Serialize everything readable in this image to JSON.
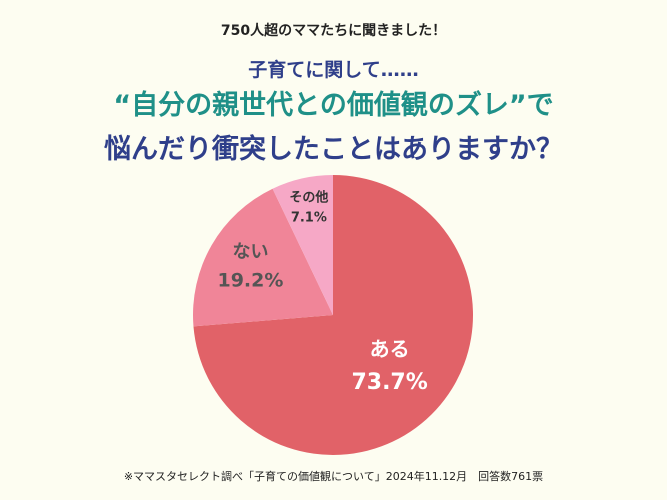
{
  "header": {
    "subtitle": "750人超のママたちに聞きました！",
    "line1": "子育てに関して……",
    "line2": "“自分の親世代との価値観のズレ”で",
    "line3": "悩んだり衝突したことはありますか？"
  },
  "footnote": "※ママスタセレクト調べ「子育ての価値観について」2024年11.12月　回答数761票",
  "chart_data": {
    "type": "pie",
    "title": "“自分の親世代との価値観のズレ”で悩んだり衝突したことはありますか？",
    "categories": [
      "ある",
      "ない",
      "その他"
    ],
    "values": [
      73.7,
      19.2,
      7.1
    ],
    "labels": [
      "73.7%",
      "19.2%",
      "7.1%"
    ],
    "colors": [
      "#e16268",
      "#f08598",
      "#f6a8c6"
    ],
    "label_colors": [
      "#ffffff",
      "#555555",
      "#333333"
    ],
    "start": "top",
    "direction": "clockwise"
  }
}
